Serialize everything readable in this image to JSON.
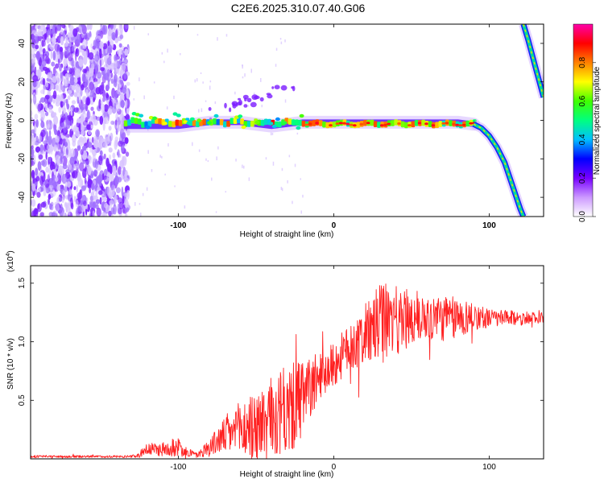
{
  "title": "C2E6.2025.310.07.40.G06",
  "chart_data": [
    {
      "type": "heatmap",
      "name": "spectrogram",
      "xlabel": "Height of straight line (km)",
      "ylabel": "Frequency (Hz)",
      "xlim": [
        -195,
        135
      ],
      "ylim": [
        -50,
        50
      ],
      "xticks": [
        -100,
        0,
        100
      ],
      "xtick_labels": [
        "-100",
        "0",
        "100"
      ],
      "yticks": [
        -40,
        -20,
        0,
        20,
        40
      ],
      "ytick_labels": [
        "-40",
        "-20",
        "0",
        "20",
        "40"
      ],
      "colorbar": {
        "label": "Normalized spectral amplitude",
        "range": [
          0,
          1
        ],
        "ticks": [
          0.0,
          0.2,
          0.4,
          0.6,
          0.8
        ],
        "tick_labels": [
          "0.0",
          "0.2",
          "0.4",
          "0.6",
          "0.8"
        ],
        "colormap": [
          "#ffffff",
          "#cc99ff",
          "#7700ff",
          "#0000ff",
          "#00bfff",
          "#00ff80",
          "#40ff00",
          "#ffff00",
          "#ff8000",
          "#ff0000",
          "#ff00aa"
        ]
      },
      "trace": {
        "description": "Main spectral line: noise for h < -135 km, centered near -2 Hz from -135 to 90 km, then curving down to -50 Hz near 122 km; aliased branch from +50 Hz at 122 km to +12 Hz at 135 km",
        "flat_points": [
          [
            -135,
            -3
          ],
          [
            -120,
            -3
          ],
          [
            -100,
            -3
          ],
          [
            -80,
            -1
          ],
          [
            -60,
            -1
          ],
          [
            -40,
            -3
          ],
          [
            -20,
            -1
          ],
          [
            0,
            -1
          ],
          [
            20,
            -1
          ],
          [
            40,
            -1
          ],
          [
            60,
            -1
          ],
          [
            80,
            -1
          ],
          [
            90,
            -2
          ]
        ],
        "curve_points": [
          [
            90,
            -2
          ],
          [
            95,
            -4
          ],
          [
            100,
            -8
          ],
          [
            105,
            -14
          ],
          [
            110,
            -22
          ],
          [
            115,
            -34
          ],
          [
            120,
            -46
          ],
          [
            122,
            -50
          ]
        ],
        "alias_points": [
          [
            122,
            50
          ],
          [
            125,
            42
          ],
          [
            130,
            27
          ],
          [
            135,
            12
          ]
        ]
      }
    },
    {
      "type": "line",
      "name": "snr",
      "xlabel": "Height of straight line (km)",
      "ylabel": "SNR (10 * v/v)",
      "multiplier_label": "(x10",
      "multiplier_exp": "4",
      "multiplier_close": ")",
      "xlim": [
        -195,
        135
      ],
      "ylim": [
        0,
        1.65
      ],
      "xticks": [
        -100,
        0,
        100
      ],
      "xtick_labels": [
        "-100",
        "0",
        "100"
      ],
      "yticks": [
        0.5,
        1.0,
        1.5
      ],
      "ytick_labels": [
        "0.5",
        "1.0",
        "1.5"
      ],
      "color": "#ff2020",
      "series_envelope": {
        "description": "Noisy SNR trace (units of 1e4); center value and fluctuation amplitude by height",
        "x": [
          -195,
          -130,
          -125,
          -122,
          -110,
          -100,
          -92,
          -88,
          -80,
          -70,
          -60,
          -50,
          -40,
          -30,
          -20,
          -10,
          0,
          10,
          20,
          30,
          40,
          50,
          60,
          70,
          80,
          90,
          100,
          110,
          120,
          130,
          135
        ],
        "center": [
          0.02,
          0.02,
          0.03,
          0.08,
          0.08,
          0.1,
          0.05,
          0.03,
          0.1,
          0.2,
          0.25,
          0.28,
          0.35,
          0.4,
          0.5,
          0.7,
          0.8,
          0.95,
          1.05,
          1.15,
          1.2,
          1.2,
          1.22,
          1.2,
          1.2,
          1.22,
          1.2,
          1.2,
          1.2,
          1.2,
          1.2
        ],
        "amplitude": [
          0.01,
          0.01,
          0.02,
          0.05,
          0.06,
          0.08,
          0.04,
          0.02,
          0.08,
          0.15,
          0.25,
          0.3,
          0.35,
          0.4,
          0.35,
          0.2,
          0.2,
          0.2,
          0.25,
          0.35,
          0.3,
          0.25,
          0.2,
          0.2,
          0.18,
          0.12,
          0.08,
          0.07,
          0.06,
          0.05,
          0.05
        ]
      }
    }
  ]
}
